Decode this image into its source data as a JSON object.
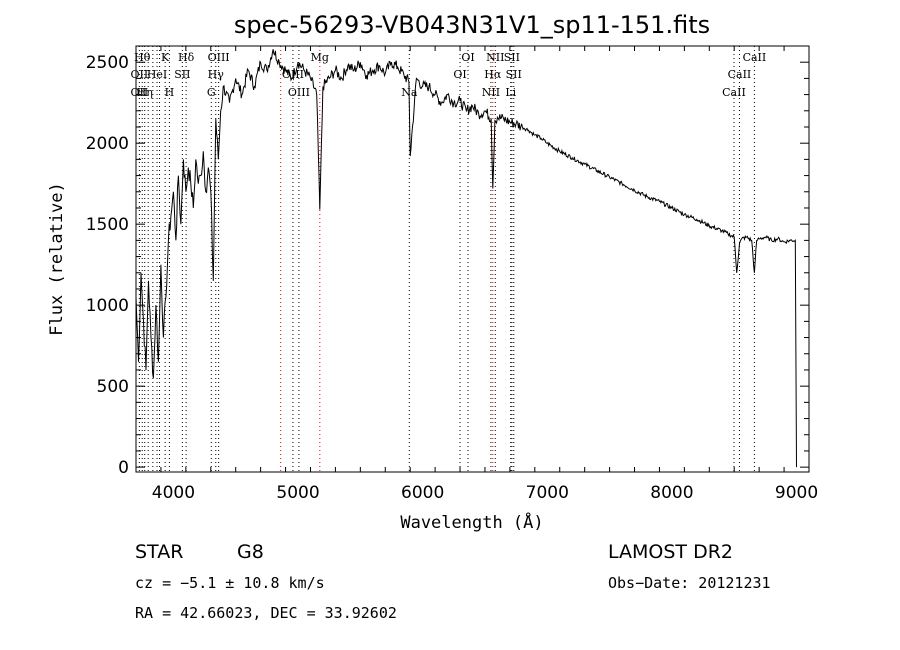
{
  "chart_data": {
    "type": "line",
    "title": "spec-56293-VB043N31V1_sp11-151.fits",
    "xlabel": "Wavelength (Å)",
    "ylabel": "Flux (relative)",
    "xlim": [
      3700,
      9100
    ],
    "ylim": [
      -30,
      2600
    ],
    "x_ticks": [
      "4000",
      "5000",
      "6000",
      "7000",
      "8000",
      "9000"
    ],
    "y_ticks": [
      "0",
      "500",
      "1000",
      "1500",
      "2000",
      "2500"
    ],
    "x_tick_values": [
      4000,
      5000,
      6000,
      7000,
      8000,
      9000
    ],
    "y_tick_values": [
      0,
      500,
      1000,
      1500,
      2000,
      2500
    ],
    "series": [
      {
        "x": [
          3700,
          3720,
          3740,
          3760,
          3780,
          3800,
          3820,
          3840,
          3860,
          3880,
          3900,
          3920,
          3940,
          3960,
          3980,
          4000,
          4020,
          4040,
          4060,
          4080,
          4100,
          4120,
          4140,
          4160,
          4180,
          4200,
          4220,
          4240,
          4260,
          4280,
          4300,
          4320,
          4340,
          4360,
          4380,
          4400,
          4450,
          4500,
          4550,
          4600,
          4650,
          4700,
          4750,
          4800,
          4850,
          4900,
          4950,
          5000,
          5050,
          5100,
          5150,
          5175,
          5200,
          5250,
          5300,
          5350,
          5400,
          5450,
          5500,
          5550,
          5600,
          5650,
          5700,
          5750,
          5800,
          5850,
          5890,
          5900,
          5950,
          6000,
          6050,
          6100,
          6150,
          6200,
          6250,
          6300,
          6350,
          6400,
          6450,
          6500,
          6550,
          6563,
          6580,
          6600,
          6650,
          6700,
          6750,
          6800,
          6850,
          6900,
          6950,
          7000,
          7100,
          7200,
          7300,
          7400,
          7500,
          7600,
          7700,
          7800,
          7900,
          8000,
          8100,
          8200,
          8300,
          8400,
          8450,
          8500,
          8520,
          8542,
          8560,
          8600,
          8640,
          8662,
          8680,
          8700,
          8750,
          8800,
          8850,
          8900,
          8950,
          8990,
          9000
        ],
        "y": [
          1050,
          650,
          1200,
          900,
          600,
          1150,
          800,
          550,
          1000,
          650,
          1250,
          800,
          1050,
          1400,
          1550,
          1700,
          1400,
          1800,
          1500,
          1900,
          1700,
          1850,
          1750,
          1600,
          1900,
          1750,
          1800,
          1950,
          1700,
          1850,
          1700,
          1150,
          2150,
          1900,
          2200,
          2350,
          2250,
          2400,
          2300,
          2450,
          2350,
          2500,
          2450,
          2580,
          2500,
          2450,
          2400,
          2500,
          2450,
          2400,
          2300,
          1590,
          2350,
          2400,
          2450,
          2400,
          2480,
          2450,
          2500,
          2420,
          2450,
          2480,
          2430,
          2500,
          2470,
          2420,
          2380,
          1920,
          2400,
          2350,
          2350,
          2300,
          2250,
          2300,
          2250,
          2260,
          2200,
          2230,
          2180,
          2200,
          2150,
          1720,
          2140,
          2160,
          2150,
          2130,
          2120,
          2100,
          2080,
          2050,
          2030,
          2000,
          1950,
          1910,
          1870,
          1830,
          1790,
          1750,
          1710,
          1670,
          1640,
          1600,
          1560,
          1530,
          1490,
          1460,
          1440,
          1420,
          1200,
          1380,
          1410,
          1420,
          1400,
          1200,
          1400,
          1410,
          1420,
          1400,
          1410,
          1390,
          1400,
          1400,
          0
        ]
      }
    ],
    "line_markers": [
      {
        "wavelength": 3727,
        "labels": [
          "OII",
          "OII"
        ],
        "rows": [
          1,
          2
        ]
      },
      {
        "wavelength": 3750,
        "labels": [
          "Hθ"
        ],
        "rows": [
          0
        ]
      },
      {
        "wavelength": 3770,
        "labels": [
          "Hη"
        ],
        "rows": [
          2
        ]
      },
      {
        "wavelength": 3798,
        "labels": [],
        "rows": []
      },
      {
        "wavelength": 3835,
        "labels": [],
        "rows": []
      },
      {
        "wavelength": 3869,
        "labels": [
          "HeI"
        ],
        "rows": [
          1
        ]
      },
      {
        "wavelength": 3889,
        "labels": [],
        "rows": []
      },
      {
        "wavelength": 3934,
        "labels": [
          "K"
        ],
        "rows": [
          0
        ]
      },
      {
        "wavelength": 3968,
        "labels": [
          "H"
        ],
        "rows": [
          2
        ]
      },
      {
        "wavelength": 4072,
        "labels": [
          "SII"
        ],
        "rows": [
          1
        ]
      },
      {
        "wavelength": 4102,
        "labels": [
          "Hδ"
        ],
        "rows": [
          0
        ]
      },
      {
        "wavelength": 4304,
        "labels": [
          "G"
        ],
        "rows": [
          2
        ]
      },
      {
        "wavelength": 4340,
        "labels": [
          "Hγ"
        ],
        "rows": [
          1
        ]
      },
      {
        "wavelength": 4363,
        "labels": [
          "OIII"
        ],
        "rows": [
          0
        ]
      },
      {
        "wavelength": 4861,
        "labels": [],
        "rows": [],
        "red": true
      },
      {
        "wavelength": 4959,
        "labels": [
          "OIII"
        ],
        "rows": [
          1
        ]
      },
      {
        "wavelength": 5007,
        "labels": [
          "OIII"
        ],
        "rows": [
          2
        ]
      },
      {
        "wavelength": 5175,
        "labels": [
          "Mg"
        ],
        "rows": [
          0
        ],
        "red": true
      },
      {
        "wavelength": 5893,
        "labels": [
          "Na"
        ],
        "rows": [
          2
        ]
      },
      {
        "wavelength": 6300,
        "labels": [
          "OI"
        ],
        "rows": [
          1
        ]
      },
      {
        "wavelength": 6364,
        "labels": [
          "OI"
        ],
        "rows": [
          0
        ]
      },
      {
        "wavelength": 6548,
        "labels": [
          "NII"
        ],
        "rows": [
          2
        ]
      },
      {
        "wavelength": 6563,
        "labels": [
          "Hα"
        ],
        "rows": [
          1
        ],
        "red": true
      },
      {
        "wavelength": 6583,
        "labels": [
          "NII"
        ],
        "rows": [
          0
        ]
      },
      {
        "wavelength": 6707,
        "labels": [
          "Li"
        ],
        "rows": [
          2
        ]
      },
      {
        "wavelength": 6716,
        "labels": [
          "SII"
        ],
        "rows": [
          0
        ]
      },
      {
        "wavelength": 6731,
        "labels": [
          "SII"
        ],
        "rows": [
          1
        ]
      },
      {
        "wavelength": 8498,
        "labels": [
          "CaII"
        ],
        "rows": [
          2
        ]
      },
      {
        "wavelength": 8542,
        "labels": [
          "CaII"
        ],
        "rows": [
          1
        ]
      },
      {
        "wavelength": 8662,
        "labels": [
          "CaII"
        ],
        "rows": [
          0
        ]
      }
    ]
  },
  "footer": {
    "object_type": "STAR",
    "subclass": "G8",
    "survey": "LAMOST DR2",
    "cz": "cz = −5.1 ± 10.8 km/s",
    "obs_date": "Obs−Date: 20121231",
    "coords": "RA =  42.66023, DEC =  33.92602"
  }
}
